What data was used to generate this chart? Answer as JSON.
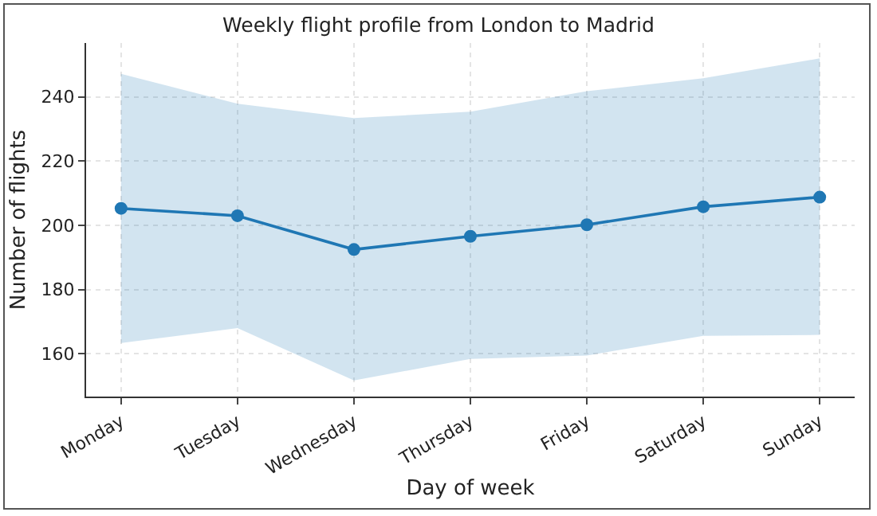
{
  "chart_data": {
    "type": "line",
    "title": "Weekly flight profile from London to Madrid",
    "xlabel": "Day of week",
    "ylabel": "Number of flights",
    "categories": [
      "Monday",
      "Tuesday",
      "Wednesday",
      "Thursday",
      "Friday",
      "Saturday",
      "Sunday"
    ],
    "series": [
      {
        "color": "#1f77b4",
        "values": [
          205.3,
          203,
          192.5,
          196.6,
          200.2,
          205.8,
          208.8
        ],
        "lower": [
          163.4,
          168,
          151.7,
          158.4,
          159.5,
          165.6,
          165.9
        ],
        "upper": [
          247.2,
          237.9,
          233.4,
          235.4,
          241.8,
          245.8,
          252
        ]
      }
    ],
    "ylim": [
      146.7,
      256.8
    ],
    "yticks": [
      160,
      180,
      200,
      220,
      240
    ],
    "grid": true,
    "marker": "circle",
    "line_style": "solid"
  }
}
